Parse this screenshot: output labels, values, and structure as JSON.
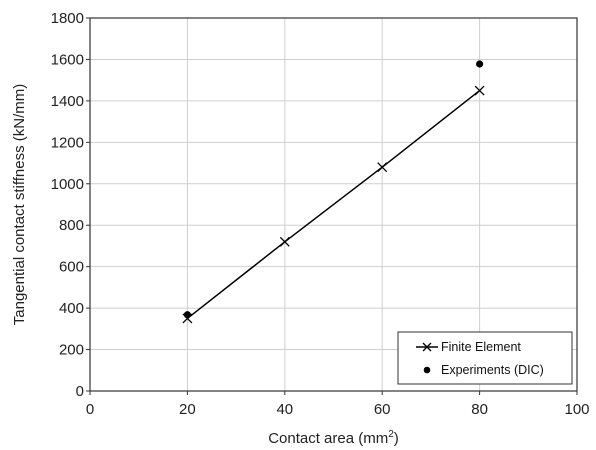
{
  "chart_data": {
    "type": "scatter",
    "title": "",
    "xlabel": "Contact area (mm",
    "xlabel_superscript": "2",
    "xlabel_suffix": ")",
    "ylabel": "Tangential contact stiffness (kN/mm)",
    "xlim": [
      0,
      100
    ],
    "ylim": [
      0,
      1800
    ],
    "x_ticks": [
      0,
      20,
      40,
      60,
      80,
      100
    ],
    "y_ticks": [
      0,
      200,
      400,
      600,
      800,
      1000,
      1200,
      1400,
      1600,
      1800
    ],
    "x_tick_labels": [
      "0",
      "20",
      "40",
      "60",
      "80",
      "100"
    ],
    "y_tick_labels": [
      "0",
      "200",
      "400",
      "600",
      "800",
      "1000",
      "1200",
      "1400",
      "1600",
      "1800"
    ],
    "grid": true,
    "legend_position": "bottom-right",
    "series": [
      {
        "name": "Finite Element",
        "style": "line-cross",
        "color": "#000000",
        "x": [
          20,
          40,
          60,
          80
        ],
        "y": [
          350,
          720,
          1080,
          1450
        ]
      },
      {
        "name": "Experiments (DIC)",
        "style": "dot",
        "color": "#000000",
        "x": [
          20,
          80
        ],
        "y": [
          368,
          1578
        ]
      }
    ]
  }
}
